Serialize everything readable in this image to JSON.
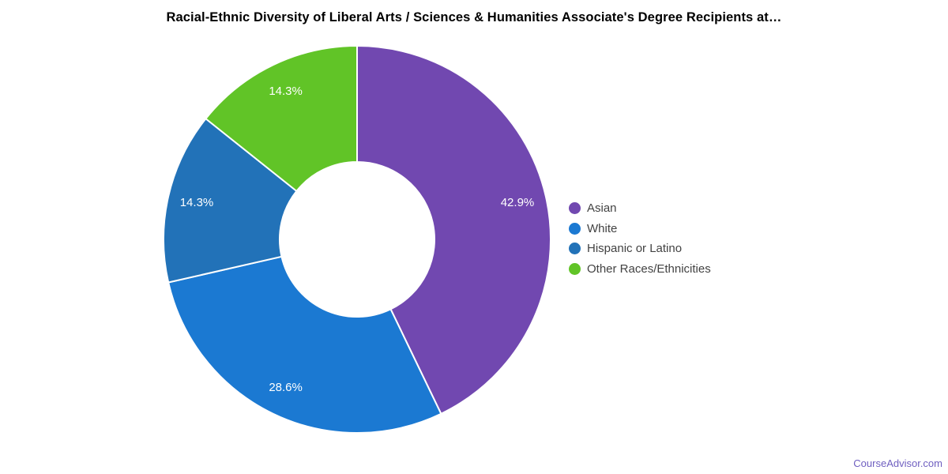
{
  "page": {
    "background_color": "#ffffff",
    "footer_link": "CourseAdvisor.com",
    "footer_link_color": "#6f5fc0"
  },
  "chart_data": {
    "type": "pie",
    "subtype": "donut",
    "title": "Racial-Ethnic Diversity of Liberal Arts / Sciences & Humanities Associate's Degree Recipients at…",
    "categories": [
      "Asian",
      "White",
      "Hispanic or Latino",
      "Other Races/Ethnicities"
    ],
    "values": [
      42.9,
      28.6,
      14.3,
      14.3
    ],
    "value_labels": [
      "42.9%",
      "28.6%",
      "14.3%",
      "14.3%"
    ],
    "unit": "%",
    "colors": [
      "#7148b0",
      "#1b79d2",
      "#2272b8",
      "#61c427"
    ],
    "slice_label_color": "#ffffff",
    "separator_color": "#ffffff",
    "start_angle_deg": 0,
    "direction": "clockwise",
    "inner_radius_ratio": 0.4,
    "label_radius_ratio": 0.85,
    "legend": {
      "position": "right",
      "text_color": "#424242"
    }
  }
}
